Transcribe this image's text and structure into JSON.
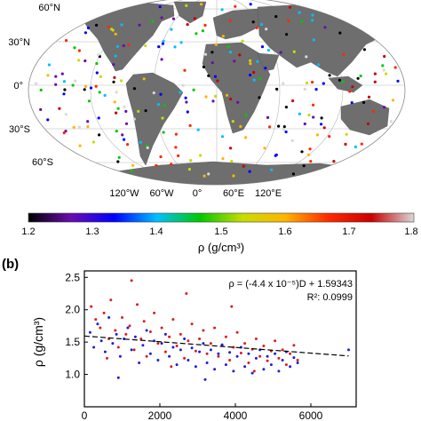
{
  "panel_a": {
    "lat_labels": [
      "60°N",
      "30°N",
      "0°",
      "30°S",
      "60°S"
    ],
    "lon_labels": [
      "120°W",
      "60°W",
      "0°",
      "60°E",
      "120°E"
    ],
    "colorbar": {
      "ticks": [
        "1.2",
        "1.3",
        "1.4",
        "1.5",
        "1.6",
        "1.7",
        "1.8"
      ],
      "label": "ρ (g/cm³)",
      "colors": [
        "#000000",
        "#6a0dad",
        "#0000ff",
        "#00bfff",
        "#00c800",
        "#c8dc00",
        "#ffb400",
        "#ff2800",
        "#c80000",
        "#d8d8d8"
      ]
    }
  },
  "panel_b": {
    "tag": "(b)",
    "ylabel": "ρ (g/cm³)",
    "equation": "ρ = (-4.4 x 10⁻⁵)D + 1.59343",
    "r2": "R²: 0.0999"
  },
  "chart_data": {
    "type": "scatter",
    "ylabel": "ρ (g/cm³)",
    "xlim": [
      0,
      7200
    ],
    "ylim": [
      0.5,
      2.6
    ],
    "x_ticks": [
      "0",
      "2000",
      "4000",
      "6000"
    ],
    "y_ticks": [
      "1.0",
      "1.5",
      "2.0",
      "2.5"
    ],
    "fit": {
      "slope": -4.4e-05,
      "intercept": 1.59343,
      "x_range": [
        0,
        7000
      ],
      "style": "dashed"
    },
    "series": [
      {
        "color": "#d81e1e",
        "points": [
          [
            180,
            2.05
          ],
          [
            300,
            1.85
          ],
          [
            420,
            1.72
          ],
          [
            520,
            1.95
          ],
          [
            650,
            1.55
          ],
          [
            700,
            2.15
          ],
          [
            820,
            1.68
          ],
          [
            900,
            1.42
          ],
          [
            1000,
            1.88
          ],
          [
            1100,
            1.62
          ],
          [
            1200,
            1.75
          ],
          [
            1320,
            1.38
          ],
          [
            1400,
            2.08
          ],
          [
            1500,
            1.55
          ],
          [
            1580,
            1.82
          ],
          [
            1650,
            1.28
          ],
          [
            1750,
            1.66
          ],
          [
            1850,
            1.95
          ],
          [
            1950,
            1.48
          ],
          [
            2050,
            1.72
          ],
          [
            2150,
            1.35
          ],
          [
            2250,
            1.58
          ],
          [
            2350,
            1.85
          ],
          [
            2450,
            1.44
          ],
          [
            2550,
            1.62
          ],
          [
            2650,
            1.25
          ],
          [
            2750,
            1.52
          ],
          [
            2850,
            1.78
          ],
          [
            2950,
            1.36
          ],
          [
            3050,
            1.55
          ],
          [
            3150,
            1.68
          ],
          [
            3250,
            1.32
          ],
          [
            3350,
            1.48
          ],
          [
            3450,
            1.72
          ],
          [
            3550,
            1.28
          ],
          [
            3650,
            1.45
          ],
          [
            3750,
            1.58
          ],
          [
            3850,
            1.22
          ],
          [
            3950,
            1.42
          ],
          [
            4050,
            1.65
          ],
          [
            4150,
            1.33
          ],
          [
            4250,
            1.48
          ],
          [
            4350,
            1.18
          ],
          [
            4450,
            1.39
          ],
          [
            4550,
            1.55
          ],
          [
            4650,
            1.28
          ],
          [
            4750,
            1.44
          ],
          [
            4850,
            1.21
          ],
          [
            4950,
            1.36
          ],
          [
            5050,
            1.52
          ],
          [
            5150,
            1.25
          ],
          [
            5250,
            1.38
          ],
          [
            5350,
            1.15
          ],
          [
            5450,
            1.32
          ],
          [
            5550,
            1.45
          ],
          [
            5650,
            1.22
          ],
          [
            1250,
            2.45
          ],
          [
            2700,
            2.25
          ],
          [
            3900,
            2.05
          ],
          [
            600,
            1.25
          ],
          [
            2300,
            1.12
          ],
          [
            4500,
            1.05
          ]
        ]
      },
      {
        "color": "#1e1ed8",
        "points": [
          [
            150,
            1.65
          ],
          [
            250,
            1.42
          ],
          [
            350,
            1.78
          ],
          [
            450,
            1.52
          ],
          [
            550,
            1.35
          ],
          [
            650,
            1.88
          ],
          [
            750,
            1.48
          ],
          [
            850,
            1.62
          ],
          [
            950,
            1.28
          ],
          [
            1050,
            1.55
          ],
          [
            1150,
            1.72
          ],
          [
            1250,
            1.38
          ],
          [
            1350,
            1.58
          ],
          [
            1450,
            1.18
          ],
          [
            1550,
            1.45
          ],
          [
            1650,
            1.68
          ],
          [
            1750,
            1.32
          ],
          [
            1850,
            1.52
          ],
          [
            1950,
            1.22
          ],
          [
            2050,
            1.48
          ],
          [
            2150,
            1.62
          ],
          [
            2250,
            1.28
          ],
          [
            2350,
            1.42
          ],
          [
            2450,
            1.15
          ],
          [
            2550,
            1.38
          ],
          [
            2650,
            1.55
          ],
          [
            2750,
            1.22
          ],
          [
            2850,
            1.41
          ],
          [
            2950,
            1.12
          ],
          [
            3050,
            1.35
          ],
          [
            3150,
            1.48
          ],
          [
            3250,
            1.18
          ],
          [
            3350,
            1.38
          ],
          [
            3450,
            1.08
          ],
          [
            3550,
            1.32
          ],
          [
            3650,
            1.46
          ],
          [
            3750,
            1.15
          ],
          [
            3850,
            1.34
          ],
          [
            3950,
            1.05
          ],
          [
            4050,
            1.28
          ],
          [
            4150,
            1.42
          ],
          [
            4250,
            1.12
          ],
          [
            4350,
            1.32
          ],
          [
            4450,
            1.02
          ],
          [
            4550,
            1.25
          ],
          [
            4650,
            1.38
          ],
          [
            4750,
            1.08
          ],
          [
            4850,
            1.28
          ],
          [
            4950,
            1.15
          ],
          [
            5050,
            1.32
          ],
          [
            5150,
            1.05
          ],
          [
            5250,
            1.22
          ],
          [
            5350,
            1.35
          ],
          [
            5450,
            1.12
          ],
          [
            5550,
            1.26
          ],
          [
            5650,
            1.18
          ],
          [
            900,
            0.95
          ],
          [
            3200,
            0.92
          ],
          [
            7000,
            1.38
          ]
        ]
      }
    ]
  }
}
